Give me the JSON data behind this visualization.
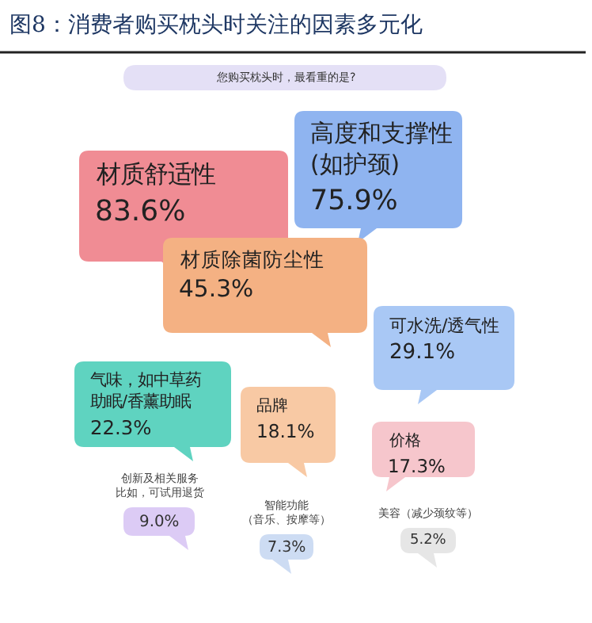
{
  "chart_data": {
    "type": "other",
    "title": "图8：消费者购买枕头时关注的因素多元化",
    "subtitle": "您购买枕头时，最看重的是?",
    "categories": [
      "材质舒适性",
      "高度和支撑性(如护颈)",
      "材质除菌防尘性",
      "可水洗/透气性",
      "气味，如中草药助眠/香薰助眠",
      "品牌",
      "价格",
      "创新及相关服务比如，可试用退货",
      "智能功能（音乐、按摩等）",
      "美容（减少颈纹等）"
    ],
    "values": [
      83.6,
      75.9,
      45.3,
      29.1,
      22.3,
      18.1,
      17.3,
      9.0,
      7.3,
      5.2
    ],
    "value_labels": [
      "83.6%",
      "75.9%",
      "45.3%",
      "29.1%",
      "22.3%",
      "18.1%",
      "17.3%",
      "9.0%",
      "7.3%",
      "5.2%"
    ],
    "colors": [
      "#f08c94",
      "#8fb4f0",
      "#f4b183",
      "#a9c8f5",
      "#5fd3c0",
      "#f8c9a4",
      "#f6c6cc",
      "#dccbf5",
      "#cddcf3",
      "#e6e6e6"
    ]
  }
}
